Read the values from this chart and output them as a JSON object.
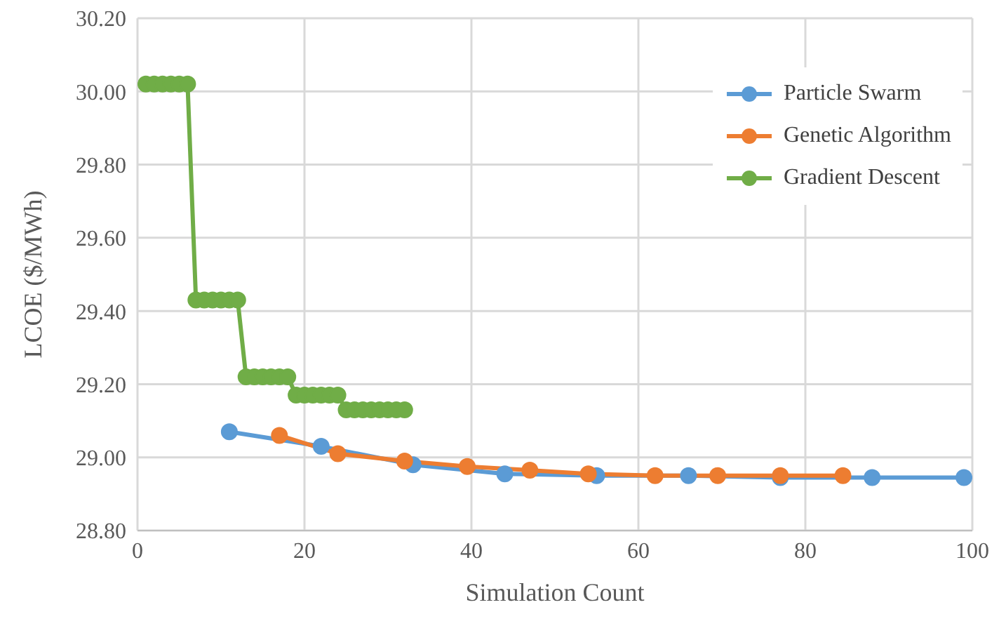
{
  "chart_data": {
    "type": "line",
    "xlabel": "Simulation Count",
    "ylabel": "LCOE ($/MWh)",
    "xlim": [
      0,
      100
    ],
    "xticks": [
      0,
      20,
      40,
      60,
      80,
      100
    ],
    "ylim": [
      28.8,
      30.2
    ],
    "yticks": [
      {
        "value": 28.8,
        "label": "28.80"
      },
      {
        "value": 29,
        "label": "29.00"
      },
      {
        "value": 29.2,
        "label": "29.20"
      },
      {
        "value": 29.4,
        "label": "29.40"
      },
      {
        "value": 29.6,
        "label": "29.60"
      },
      {
        "value": 29.8,
        "label": "29.80"
      },
      {
        "value": 30,
        "label": "30.00"
      },
      {
        "value": 30.2,
        "label": "30.20"
      }
    ],
    "grid": true,
    "legend": "top right",
    "marker": "circle",
    "line_style": "solid",
    "series": [
      {
        "name": "Particle Swarm",
        "color": "#5b9bd5",
        "x": [
          11,
          22,
          33,
          44,
          55,
          66,
          77,
          88,
          99
        ],
        "values": [
          29.07,
          29.03,
          28.98,
          28.955,
          28.95,
          28.95,
          28.945,
          28.945,
          28.945
        ]
      },
      {
        "name": "Genetic Algorithm",
        "color": "#ed7d31",
        "x": [
          17,
          24,
          32,
          39.5,
          47,
          54,
          62,
          69.5,
          77,
          84.5
        ],
        "values": [
          29.06,
          29.01,
          28.99,
          28.975,
          28.965,
          28.955,
          28.95,
          28.95,
          28.95,
          28.95
        ]
      },
      {
        "name": "Gradient Descent",
        "color": "#70ad47",
        "x": [
          1,
          2,
          3,
          4,
          5,
          6,
          7,
          8,
          9,
          10,
          11,
          12,
          13,
          14,
          15,
          16,
          17,
          18,
          19,
          20,
          21,
          22,
          23,
          24,
          25,
          26,
          27,
          28,
          29,
          30,
          31,
          32
        ],
        "values": [
          30.02,
          30.02,
          30.02,
          30.02,
          30.02,
          30.02,
          29.43,
          29.43,
          29.43,
          29.43,
          29.43,
          29.43,
          29.22,
          29.22,
          29.22,
          29.22,
          29.22,
          29.22,
          29.17,
          29.17,
          29.17,
          29.17,
          29.17,
          29.17,
          29.13,
          29.13,
          29.13,
          29.13,
          29.13,
          29.13,
          29.13,
          29.13
        ]
      }
    ]
  }
}
